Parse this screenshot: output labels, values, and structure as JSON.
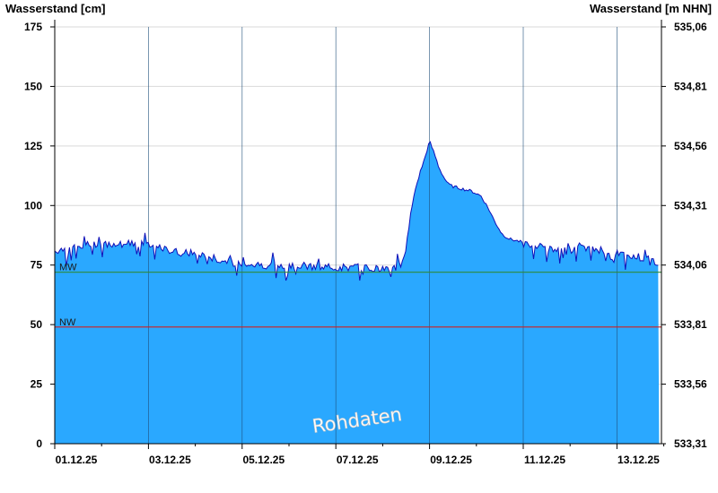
{
  "chart_data": {
    "type": "area",
    "left_axis_title": "Wasserstand [cm]",
    "right_axis_title": "Wasserstand [m NHN]",
    "watermark": "Rohdaten",
    "x_range": [
      "01.12.25",
      "13.12.25 24:00"
    ],
    "x_tick_labels": [
      "01.12.25",
      "03.12.25",
      "05.12.25",
      "07.12.25",
      "09.12.25",
      "11.12.25",
      "13.12.25"
    ],
    "y_range": [
      0,
      175
    ],
    "y_ticks": [
      0,
      25,
      50,
      75,
      100,
      125,
      150,
      175
    ],
    "right_y_tick_labels": [
      "533,31",
      "533,56",
      "533,81",
      "534,06",
      "534,31",
      "534,56",
      "534,81",
      "535,06"
    ],
    "grid": true,
    "reference_lines": [
      {
        "label": "MW",
        "value": 72,
        "color": "#2e8b3a"
      },
      {
        "label": "NW",
        "value": 49,
        "color": "#d02020"
      }
    ],
    "series": [
      {
        "x_day": [
          0.0,
          0.25,
          0.5,
          0.75,
          1.0,
          1.25,
          1.5,
          1.75,
          2.0,
          2.25,
          2.5,
          2.75,
          3.0,
          3.25,
          3.5,
          3.75,
          4.0,
          4.25,
          4.5,
          4.75,
          5.0,
          5.25,
          5.5,
          5.75,
          6.0,
          6.25,
          6.5,
          6.75,
          7.0,
          7.1,
          7.2,
          7.3,
          7.4,
          7.5,
          7.6,
          7.7,
          7.8,
          7.9,
          8.0,
          8.1,
          8.2,
          8.3,
          8.4,
          8.5,
          8.7,
          8.9,
          9.1,
          9.25,
          9.4,
          9.55,
          9.7,
          9.9,
          10.1,
          10.3,
          10.5,
          10.75,
          11.0,
          11.25,
          11.5,
          11.75,
          12.0,
          12.25,
          12.5,
          12.75,
          12.9
        ],
        "y_cm": [
          81,
          82,
          83,
          84,
          84,
          84,
          84,
          84,
          83,
          82,
          81,
          80,
          80,
          79,
          77,
          76,
          76,
          75,
          75,
          75,
          75,
          75,
          74,
          74,
          74,
          74,
          74,
          74,
          73,
          73,
          74,
          74,
          76,
          82,
          97,
          107,
          114,
          120,
          127,
          122,
          116,
          112,
          109,
          108,
          107,
          106,
          104,
          99,
          93,
          88,
          86,
          85,
          84,
          83,
          82,
          81,
          81,
          82,
          82,
          81,
          80,
          79,
          78,
          77,
          76
        ]
      }
    ]
  }
}
